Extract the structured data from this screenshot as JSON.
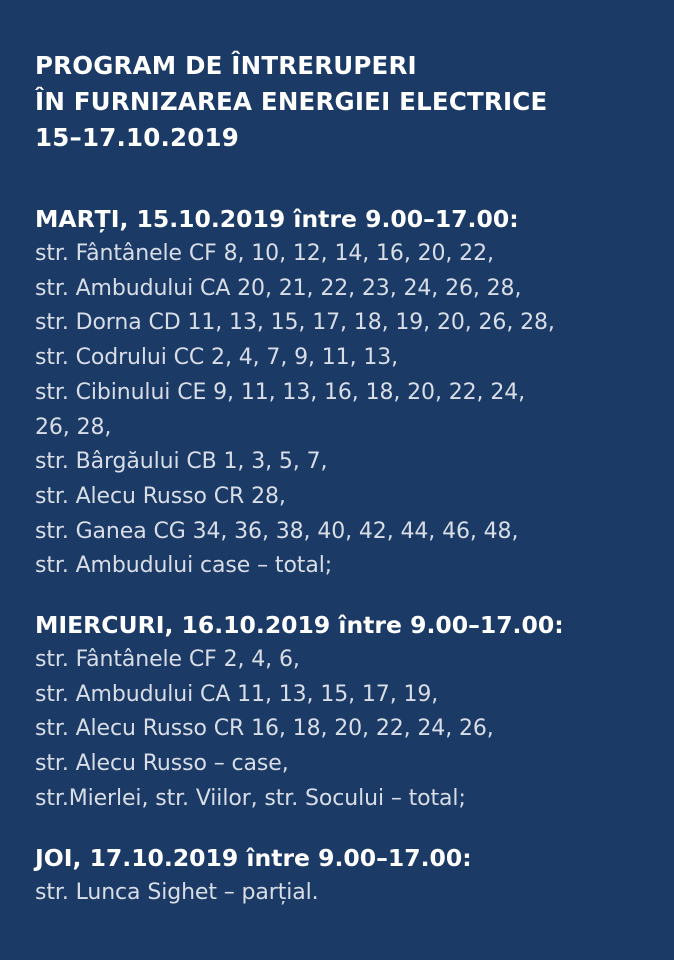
{
  "title": {
    "line1": "PROGRAM DE ÎNTRERUPERI",
    "line2": "ÎN FURNIZAREA ENERGIEI ELECTRICE",
    "line3": "15–17.10.2019"
  },
  "sections": [
    {
      "heading": "MARȚI, 15.10.2019 între 9.00–17.00:",
      "lines": [
        "str. Fântânele CF 8, 10, 12, 14, 16, 20, 22,",
        "str. Ambudului CA 20, 21, 22, 23, 24, 26, 28,",
        "str. Dorna CD 11, 13, 15, 17, 18, 19, 20, 26, 28,",
        "str. Codrului CC 2, 4, 7, 9, 11, 13,",
        "str. Cibinului CE 9, 11, 13, 16, 18, 20, 22, 24,",
        "26, 28,",
        "str. Bârgăului CB 1, 3, 5, 7,",
        "str. Alecu Russo CR 28,",
        "str. Ganea CG 34, 36, 38, 40, 42, 44, 46, 48,",
        "str. Ambudului case – total;"
      ]
    },
    {
      "heading": "MIERCURI, 16.10.2019 între 9.00–17.00:",
      "lines": [
        "str. Fântânele CF 2, 4, 6,",
        "str. Ambudului CA 11, 13, 15, 17, 19,",
        "str. Alecu Russo CR 16, 18, 20, 22, 24, 26,",
        "str. Alecu Russo – case,",
        "str.Mierlei, str. Viilor, str. Socului – total;"
      ]
    },
    {
      "heading": "JOI, 17.10.2019 între 9.00–17.00:",
      "lines": [
        "str. Lunca Sighet – parțial."
      ]
    }
  ]
}
